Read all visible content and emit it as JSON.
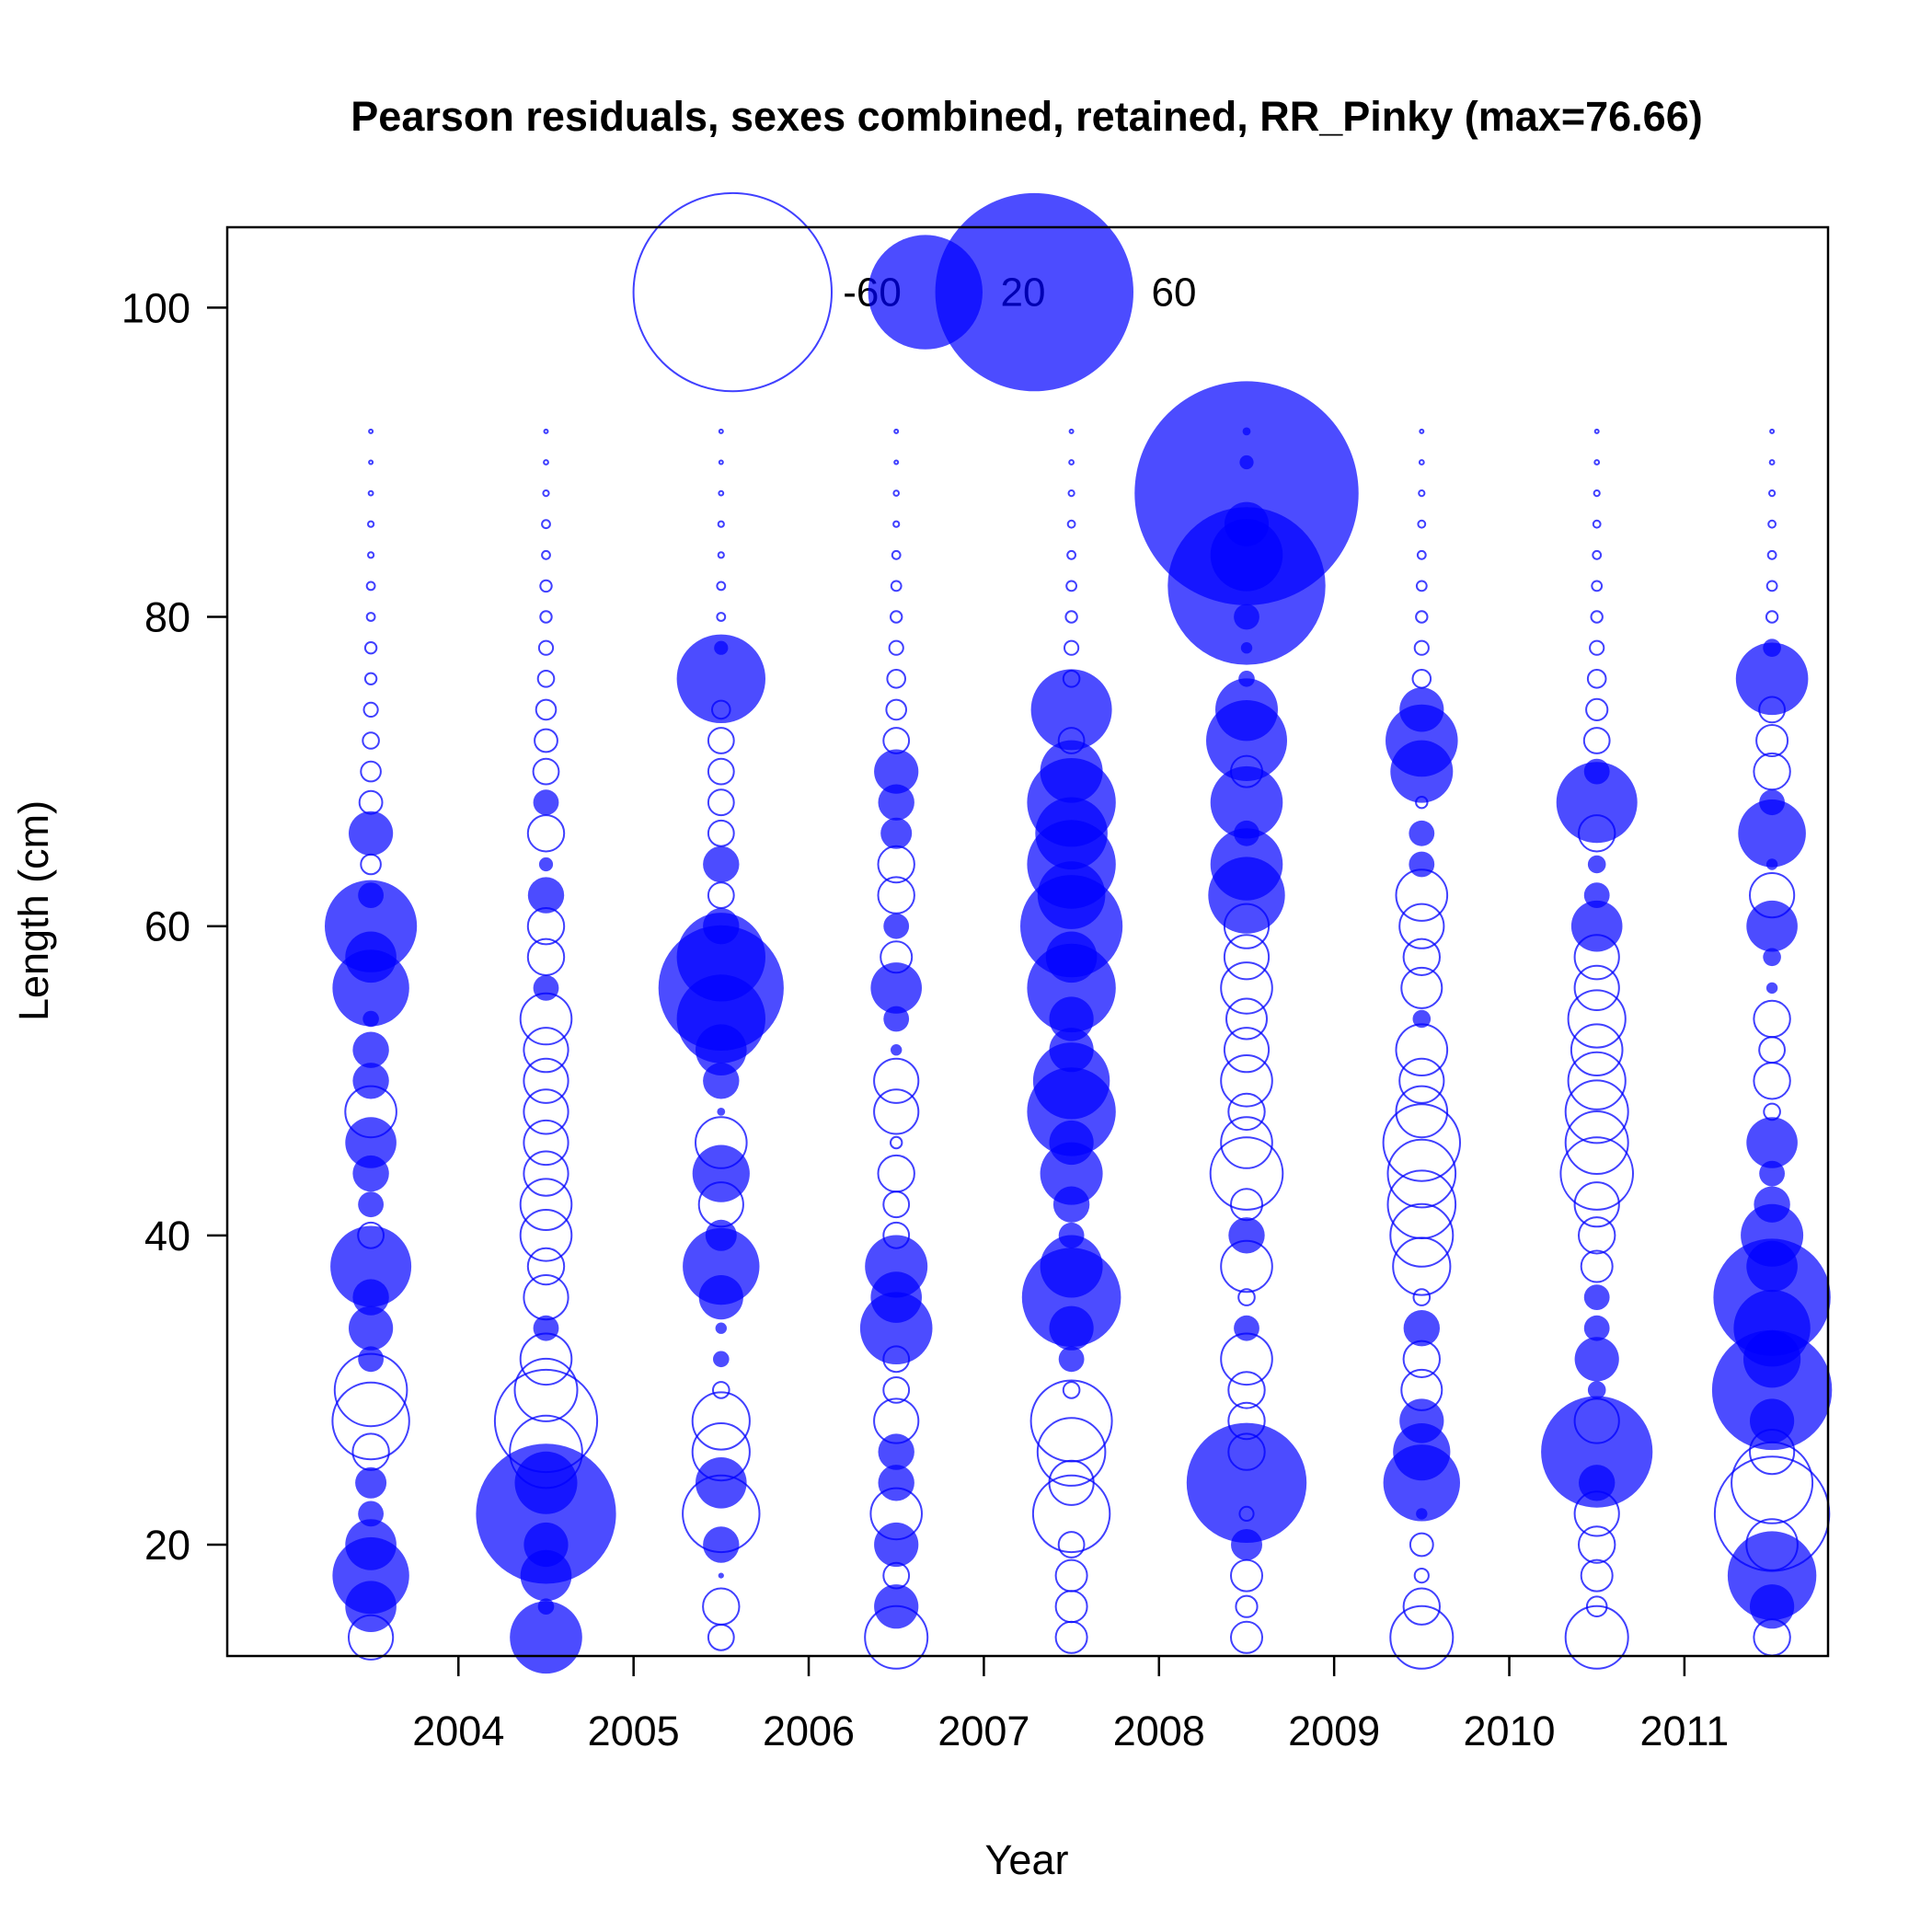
{
  "chart_data": {
    "type": "scatter",
    "subtype": "bubble",
    "title": "Pearson residuals, sexes combined, retained, RR_Pinky (max=76.66)",
    "xlabel": "Year",
    "ylabel": "Length (cm)",
    "xlim": [
      2002.68,
      2011.82
    ],
    "ylim": [
      12.8,
      105.2
    ],
    "x_ticks": [
      2004,
      2005,
      2006,
      2007,
      2008,
      2009,
      2010,
      2011
    ],
    "y_ticks": [
      20,
      40,
      60,
      80,
      100
    ],
    "colors": {
      "marker": "#0000ff",
      "filled_alpha": 0.7,
      "open_alpha": 0.75
    },
    "encoding": "filled = positive residual, open = negative residual; area proportional to |residual|",
    "max_residual": 76.66,
    "legend": {
      "position": "top",
      "values": [
        -60,
        20,
        60
      ],
      "labels": [
        "-60",
        "20",
        "60"
      ]
    },
    "bins": [
      14,
      16,
      18,
      20,
      22,
      24,
      26,
      28,
      30,
      32,
      34,
      36,
      38,
      40,
      42,
      44,
      46,
      48,
      50,
      52,
      54,
      56,
      58,
      60,
      62,
      64,
      66,
      68,
      70,
      72,
      74,
      76,
      78,
      80,
      82,
      84,
      86,
      88,
      90,
      92
    ],
    "series": [
      {
        "year": 2003.5,
        "residuals": [
          -3,
          4,
          9,
          4,
          1,
          1.5,
          -2,
          -9,
          -8,
          1,
          3,
          2,
          10,
          -1,
          1,
          2,
          4,
          -4,
          2,
          2,
          0.4,
          9,
          4,
          13,
          1,
          -0.6,
          3,
          -0.8,
          -0.6,
          -0.4,
          -0.3,
          -0.2,
          -0.2,
          -0.1,
          -0.1,
          -0.05,
          -0.05,
          -0.03,
          -0.02,
          -0.02
        ]
      },
      {
        "year": 2004.5,
        "residuals": [
          8,
          0.4,
          4,
          3,
          30,
          6,
          -8,
          -16,
          -6,
          -4,
          1,
          -3,
          -2,
          -4,
          -4,
          -3,
          -3,
          -3,
          -3,
          -3,
          -4,
          1,
          -2,
          -2,
          2,
          0.3,
          -2,
          1,
          -1,
          -0.8,
          -0.6,
          -0.4,
          -0.3,
          -0.2,
          -0.2,
          -0.1,
          -0.1,
          -0.05,
          -0.03,
          -0.02
        ]
      },
      {
        "year": 2005.5,
        "residuals": [
          -1,
          -2,
          0.05,
          2,
          -9,
          4,
          -5,
          -5,
          -0.4,
          0.4,
          0.2,
          3,
          9,
          1.5,
          -3,
          5,
          -4,
          0.1,
          2,
          4,
          12,
          24,
          12,
          2,
          -1,
          2,
          -1,
          -1,
          -1,
          -1,
          -0.5,
          12,
          0.3,
          -0.1,
          -0.1,
          -0.05,
          -0.05,
          -0.03,
          -0.02,
          -0.02
        ]
      },
      {
        "year": 2006.5,
        "residuals": [
          -6,
          3,
          -1,
          3,
          -4,
          2,
          2,
          -3,
          -1,
          -1,
          8,
          4,
          6,
          -1,
          -1,
          -2,
          -0.2,
          -3,
          -3,
          0.2,
          1,
          4,
          -1.5,
          1,
          -2,
          -2,
          1.5,
          2,
          3,
          -1,
          -0.6,
          -0.5,
          -0.3,
          -0.2,
          -0.15,
          -0.1,
          -0.05,
          -0.04,
          -0.02,
          -0.02
        ]
      },
      {
        "year": 2007.5,
        "residuals": [
          -1.5,
          -1.5,
          -1.5,
          -1,
          -9,
          -3,
          -7,
          -10,
          -0.4,
          1,
          3,
          15,
          6,
          1,
          2,
          6,
          3,
          12,
          9,
          3,
          3,
          12,
          4,
          16,
          7,
          12,
          8,
          12,
          6,
          -1,
          10,
          -0.4,
          -0.3,
          -0.2,
          -0.15,
          -0.1,
          -0.08,
          -0.05,
          -0.03,
          -0.02
        ]
      },
      {
        "year": 2008.5,
        "residuals": [
          -1.5,
          -0.7,
          -1.5,
          1.5,
          -0.3,
          22,
          -2,
          -2,
          -2,
          -4,
          1,
          -0.4,
          -4,
          2,
          -1.5,
          -8,
          -4,
          -2,
          -4,
          -3,
          -2.5,
          -4,
          -3,
          -3,
          9,
          8,
          1,
          8,
          -1.5,
          10,
          6,
          0.4,
          0.2,
          1,
          38,
          8,
          3,
          76.66,
          0.3,
          0.1
        ]
      },
      {
        "year": 2009.5,
        "residuals": [
          -6,
          -2,
          -0.3,
          -0.8,
          0.2,
          9,
          5,
          3,
          -2.5,
          -2,
          2,
          -0.4,
          -5,
          -6,
          -7,
          -7,
          -9,
          -4,
          -3,
          -4,
          0.5,
          -2.5,
          -2,
          -3,
          -4,
          1,
          1,
          -0.2,
          6,
          8,
          3,
          -0.5,
          -0.3,
          -0.2,
          -0.15,
          -0.1,
          -0.08,
          -0.05,
          -0.03,
          -0.02
        ]
      },
      {
        "year": 2010.5,
        "residuals": [
          -6,
          -0.6,
          -1.5,
          -2,
          -3,
          2,
          19,
          -3,
          0.5,
          3,
          1,
          1,
          -1.5,
          -2,
          -3,
          -8,
          -6,
          -6,
          -5,
          -4,
          -5,
          -3,
          -3,
          4,
          1,
          0.5,
          -2,
          10,
          1,
          -1,
          -0.7,
          -0.5,
          -0.3,
          -0.2,
          -0.15,
          -0.1,
          -0.08,
          -0.05,
          -0.03,
          -0.02
        ]
      },
      {
        "year": 2011.5,
        "residuals": [
          -2,
          3,
          12,
          -4,
          -20,
          -10,
          -3,
          3,
          22,
          5,
          9,
          21,
          4,
          6,
          2,
          1,
          4,
          -0.4,
          -2,
          -1,
          -2,
          0.2,
          0.5,
          4,
          -3,
          0.2,
          7,
          1,
          -2,
          -1.5,
          -1,
          8,
          0.5,
          -0.2,
          -0.15,
          -0.1,
          -0.08,
          -0.05,
          -0.03,
          -0.02
        ]
      }
    ]
  }
}
